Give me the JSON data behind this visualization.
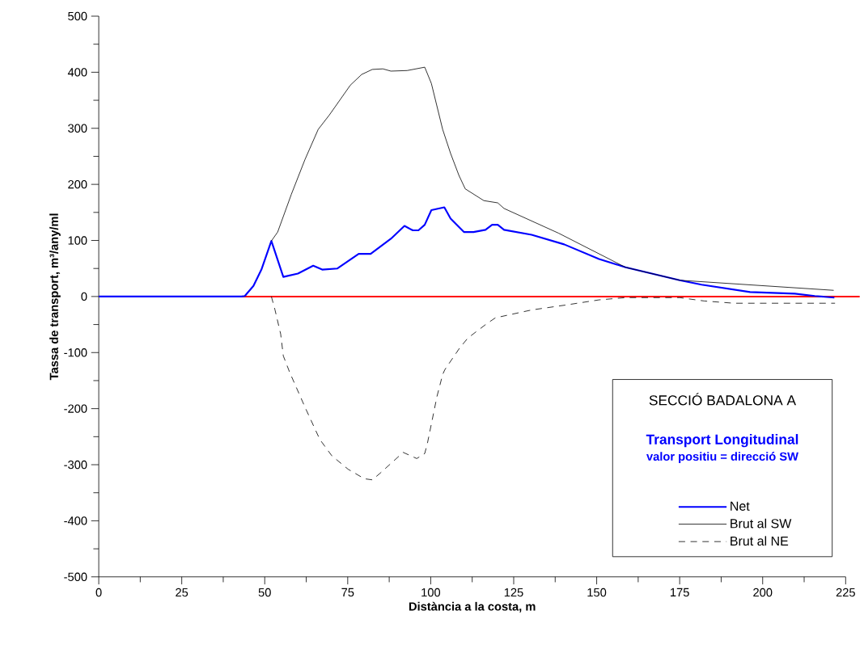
{
  "chart_data": {
    "type": "line",
    "title": "SECCIÓ BADALONA A",
    "subtitle": "Transport Longitudinal",
    "annotations": [
      "valor positiu = direcció SW"
    ],
    "xlabel": "Distància a la costa, m",
    "ylabel": "Tassa de transport, m³/any/ml",
    "xlim": [
      0,
      225
    ],
    "ylim": [
      -500,
      500
    ],
    "xticks": [
      0,
      25,
      50,
      75,
      100,
      125,
      150,
      175,
      200,
      225
    ],
    "yticks": [
      -500,
      -400,
      -300,
      -200,
      -100,
      0,
      100,
      200,
      300,
      400,
      500
    ],
    "grid": false,
    "legend": "bottom right",
    "ref_lines": [
      {
        "axis": "y",
        "value": 0,
        "color": "#ff0000",
        "line_style": "solid"
      }
    ],
    "series": [
      {
        "name": "Net",
        "color": "#0000ff",
        "line_style": "solid",
        "x": [
          0,
          43,
          44,
          46.6,
          49,
          52,
          55.6,
          60,
          64.6,
          67.3,
          71.9,
          78.3,
          81.9,
          88,
          92.1,
          94.6,
          96.3,
          98.2,
          100.2,
          104.1,
          106,
          110,
          112.9,
          116.5,
          118.5,
          120.2,
          122.1,
          130.4,
          140.2,
          150.7,
          158.7,
          175,
          181.6,
          196.2,
          209.7,
          215.7,
          221.6
        ],
        "values": [
          0,
          0,
          1,
          19,
          48,
          99,
          35,
          41,
          55,
          48,
          50,
          76,
          76,
          103,
          126,
          118,
          118,
          128,
          154,
          159,
          139,
          115,
          115,
          119,
          128,
          128,
          119,
          110,
          93,
          67,
          52,
          29,
          21,
          8,
          5,
          1,
          -2
        ]
      },
      {
        "name": "Brut al SW",
        "color": "#000000",
        "line_style": "solid",
        "x": [
          52,
          53.9,
          58,
          62.1,
          66.1,
          69.5,
          75.8,
          79.2,
          82.4,
          85.6,
          88,
          92.9,
          98.2,
          100.2,
          103.6,
          106,
          108.5,
          110.4,
          116,
          120.2,
          122.1,
          138.5,
          158.7,
          175,
          221.4
        ],
        "values": [
          99,
          115,
          182,
          244,
          298,
          324,
          377,
          396,
          405,
          406,
          402,
          403,
          409,
          380,
          298,
          255,
          216,
          192,
          171,
          167,
          157,
          113,
          52,
          29,
          11
        ]
      },
      {
        "name": "Brut al NE",
        "color": "#000000",
        "line_style": "dashed",
        "x": [
          52,
          53.1,
          54.8,
          55.6,
          57.5,
          62.1,
          66.6,
          70.2,
          75.1,
          80,
          82.4,
          84.8,
          91.7,
          95.8,
          98.2,
          99,
          101.9,
          103.6,
          104.3,
          108.7,
          111.2,
          117,
          119.5,
          130.4,
          140.9,
          150.7,
          158.7,
          175,
          182.4,
          191.4,
          221.8
        ],
        "values": [
          0,
          -24,
          -67,
          -106,
          -135,
          -197,
          -255,
          -284,
          -308,
          -325,
          -327,
          -315,
          -278,
          -289,
          -280,
          -262,
          -178,
          -139,
          -130,
          -92,
          -74,
          -48,
          -38,
          -24,
          -15,
          -6,
          -2,
          -2,
          -8,
          -12,
          -12
        ]
      }
    ]
  }
}
